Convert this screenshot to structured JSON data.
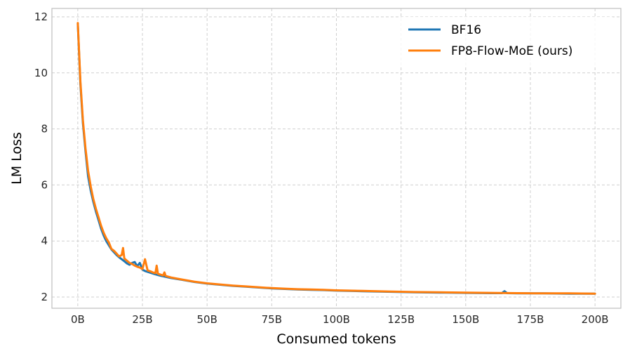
{
  "chart_data": {
    "type": "line",
    "title": "",
    "xlabel": "Consumed tokens",
    "ylabel": "LM Loss",
    "xlim": [
      -10,
      210
    ],
    "ylim": [
      1.6,
      12.3
    ],
    "xticks": [
      0,
      25,
      50,
      75,
      100,
      125,
      150,
      175,
      200
    ],
    "xtick_labels": [
      "0B",
      "25B",
      "50B",
      "75B",
      "100B",
      "125B",
      "150B",
      "175B",
      "200B"
    ],
    "yticks": [
      2,
      4,
      6,
      8,
      10,
      12
    ],
    "ytick_labels": [
      "2",
      "4",
      "6",
      "8",
      "10",
      "12"
    ],
    "grid": true,
    "legend_position": "top-right",
    "x_unit": "billion tokens",
    "series": [
      {
        "name": "BF16",
        "color": "#1f77b4",
        "x": [
          0,
          1,
          2,
          3,
          4,
          5,
          6,
          7,
          8,
          9,
          10,
          11,
          12,
          13,
          14,
          15,
          16,
          17,
          18,
          19,
          20,
          21,
          22,
          23,
          24,
          25,
          26,
          28,
          30,
          32,
          34,
          36,
          40,
          45,
          50,
          55,
          60,
          65,
          70,
          75,
          80,
          85,
          90,
          95,
          100,
          110,
          120,
          130,
          140,
          150,
          160,
          164,
          165,
          166,
          170,
          180,
          190,
          200
        ],
        "y": [
          11.75,
          9.6,
          8.2,
          7.2,
          6.3,
          5.8,
          5.4,
          5.05,
          4.75,
          4.45,
          4.2,
          4.0,
          3.85,
          3.7,
          3.6,
          3.5,
          3.42,
          3.35,
          3.28,
          3.2,
          3.15,
          3.22,
          3.25,
          3.1,
          3.22,
          2.98,
          2.93,
          2.87,
          2.81,
          2.76,
          2.72,
          2.68,
          2.62,
          2.54,
          2.48,
          2.44,
          2.4,
          2.37,
          2.34,
          2.31,
          2.29,
          2.27,
          2.26,
          2.25,
          2.23,
          2.21,
          2.19,
          2.17,
          2.16,
          2.15,
          2.14,
          2.14,
          2.21,
          2.14,
          2.13,
          2.13,
          2.12,
          2.12
        ]
      },
      {
        "name": "FP8-Flow-MoE (ours)",
        "color": "#ff7f0e",
        "x": [
          0,
          1,
          2,
          3,
          4,
          5,
          6,
          7,
          8,
          9,
          10,
          11,
          12,
          13,
          14,
          15,
          16,
          17,
          17.5,
          18,
          19,
          20,
          21,
          22,
          23,
          24,
          25,
          26,
          27,
          28,
          29,
          30,
          30.5,
          31,
          32,
          33,
          33.5,
          34,
          36,
          40,
          45,
          50,
          55,
          60,
          65,
          70,
          75,
          80,
          85,
          90,
          95,
          100,
          110,
          120,
          130,
          140,
          150,
          160,
          170,
          180,
          190,
          200
        ],
        "y": [
          11.78,
          9.7,
          8.3,
          7.3,
          6.5,
          5.95,
          5.5,
          5.15,
          4.85,
          4.55,
          4.3,
          4.1,
          3.95,
          3.72,
          3.65,
          3.55,
          3.45,
          3.5,
          3.75,
          3.38,
          3.3,
          3.22,
          3.18,
          3.12,
          3.08,
          3.05,
          3.0,
          3.35,
          2.95,
          2.92,
          2.88,
          2.85,
          3.12,
          2.83,
          2.8,
          2.77,
          2.88,
          2.75,
          2.7,
          2.63,
          2.55,
          2.49,
          2.45,
          2.41,
          2.38,
          2.35,
          2.32,
          2.3,
          2.28,
          2.27,
          2.26,
          2.24,
          2.22,
          2.2,
          2.18,
          2.17,
          2.16,
          2.15,
          2.14,
          2.13,
          2.13,
          2.12
        ]
      }
    ]
  }
}
